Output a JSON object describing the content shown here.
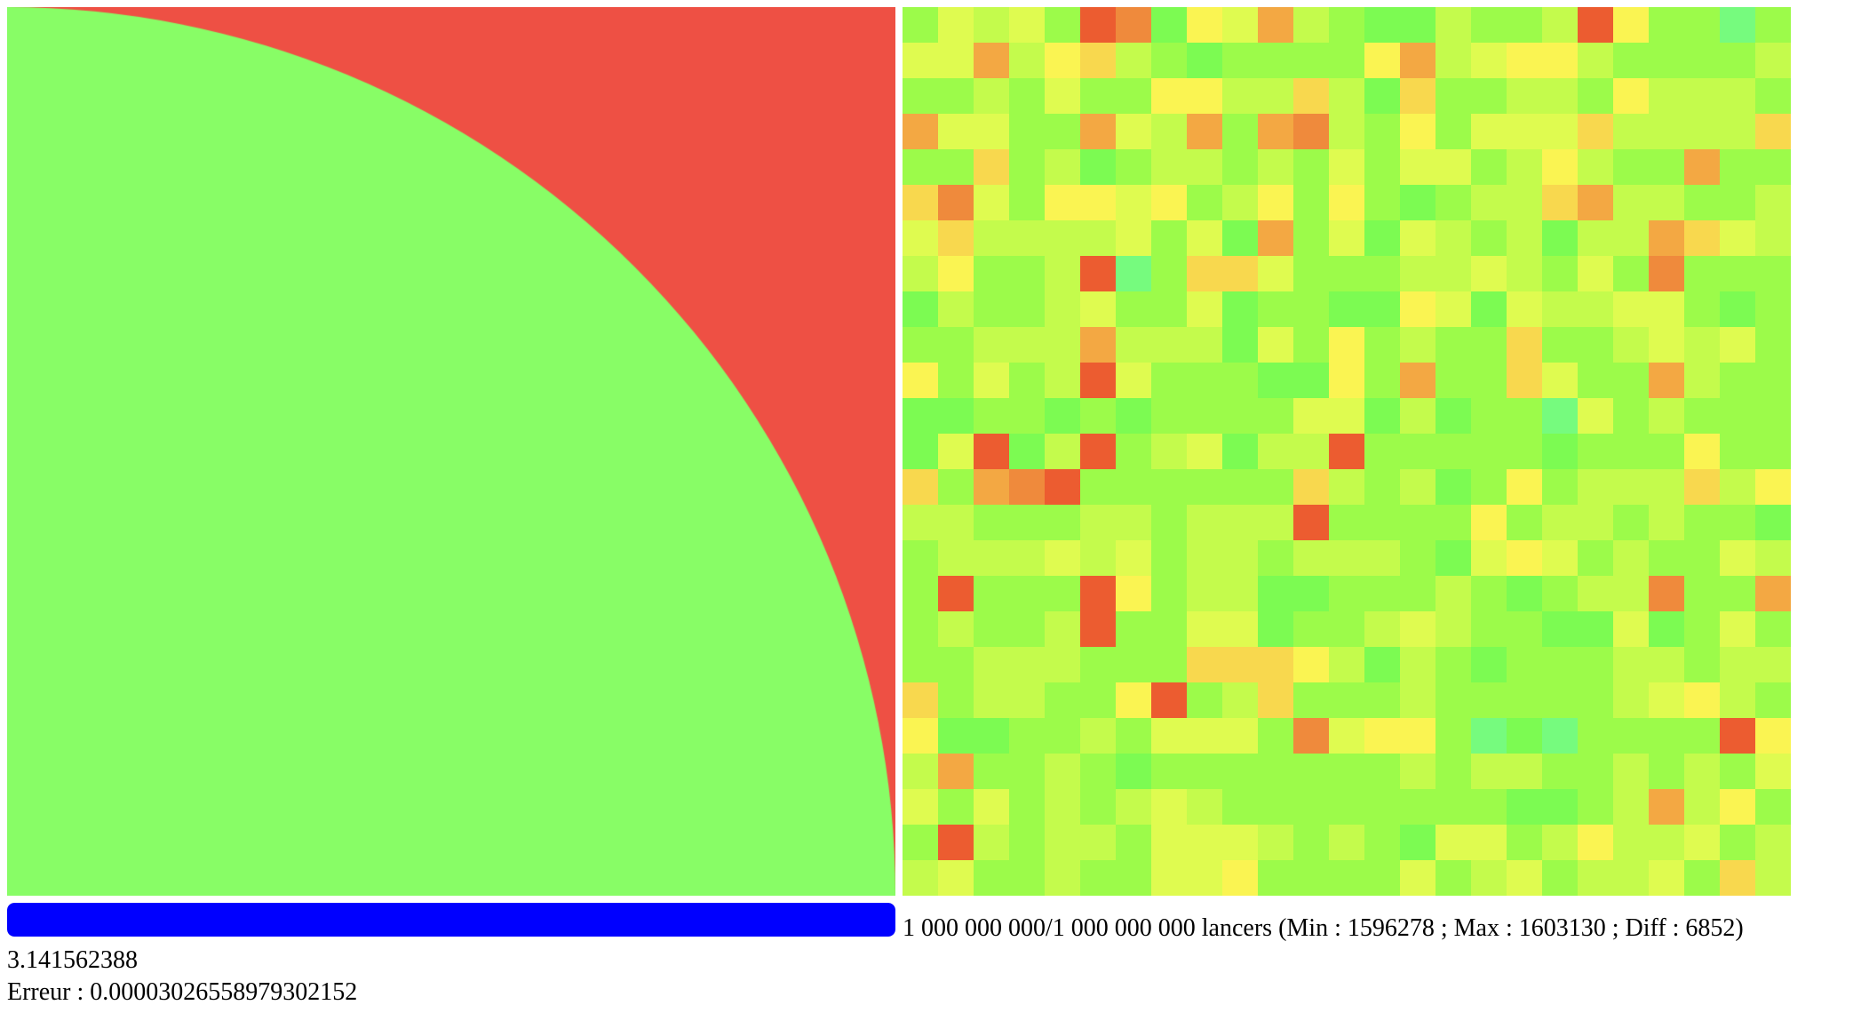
{
  "colors": {
    "inside": "#88fd66",
    "outside": "#ee5044",
    "progress_fill": "#0000ff"
  },
  "simulation": {
    "throws_done": "1 000 000 000",
    "throws_total": "1 000 000 000",
    "counter_text": "1 000 000 000/1 000 000 000 lancers (Min : 1596278 ; Max : 1603130 ; Diff : 6852)",
    "min": 1596278,
    "max": 1603130,
    "diff": 6852,
    "progress": 1.0,
    "pi_estimate": "3.141562388",
    "error_text": "Erreur : 0.000030265589793021 52"
  },
  "heatmap": {
    "rows": 25,
    "cols": 25,
    "palette": [
      "#76fb7e",
      "#7cfb52",
      "#9cfb4a",
      "#c4fb4c",
      "#dffb50",
      "#faf452",
      "#f8d84e",
      "#f3a843",
      "#ef8a3c",
      "#ec5c30",
      "#e83a28"
    ],
    "levels": [
      "2434298154732113223952202",
      "4473563212222573455322223",
      "2232422553363162233253332",
      "7442274372783252444633336",
      "2262312332324244235322722",
      "6842554523525212336733223",
      "4633334241724143231337643",
      "3522390266422233432428222",
      "1322342241221154143344212",
      "2233373331425232262234342",
      "5242394222115272264227322",
      "1122121222244131220423222",
      "1491392341339222221222522",
      "6278922222263231252333635",
      "3322233233392222523323221",
      "2333434233233321454232243",
      "2922295233112223212338227",
      "2322392244122343221141242",
      "2233322266653132122233233",
      "6233225923622232222234532",
      "5112232444284552010222295",
      "3722321222222232332232324",
      "4242323432222222211237352",
      "2932332444323214423533423",
      "3422322445222242342334263"
    ]
  }
}
